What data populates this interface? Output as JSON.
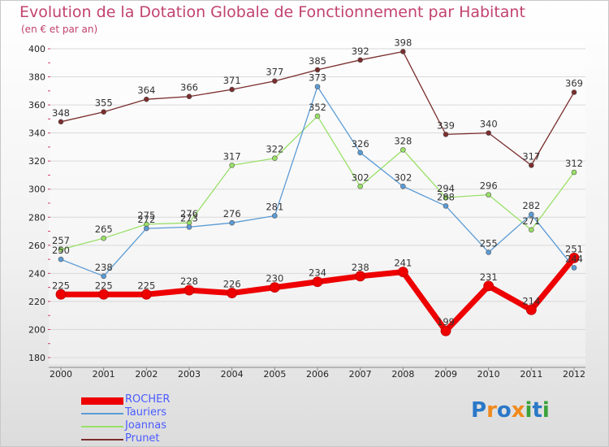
{
  "header": {
    "title": "Evolution de la Dotation Globale de Fonctionnement par Habitant",
    "subtitle": "(en € et par an)"
  },
  "chart_data": {
    "type": "line",
    "x": [
      "2000",
      "2001",
      "2002",
      "2003",
      "2004",
      "2005",
      "2006",
      "2007",
      "2008",
      "2009",
      "2010",
      "2011",
      "2012"
    ],
    "ylim": [
      180,
      400
    ],
    "yticks": [
      180,
      200,
      220,
      240,
      260,
      280,
      300,
      320,
      340,
      360,
      380,
      400
    ],
    "grid": "horizontal",
    "legend": "bottom-left",
    "series": [
      {
        "name": "ROCHER",
        "color": "#ee0000",
        "values": [
          225,
          225,
          225,
          228,
          226,
          230,
          234,
          238,
          241,
          199,
          231,
          214,
          251
        ]
      },
      {
        "name": "Tauriers",
        "color": "#5b9bd5",
        "values": [
          250,
          238,
          272,
          273,
          276,
          281,
          373,
          326,
          302,
          288,
          255,
          282,
          244
        ]
      },
      {
        "name": "Joannas",
        "color": "#99e067",
        "values": [
          257,
          265,
          275,
          276,
          317,
          322,
          352,
          302,
          328,
          294,
          296,
          271,
          312
        ]
      },
      {
        "name": "Prunet",
        "color": "#7b2d2d",
        "values": [
          348,
          355,
          364,
          366,
          371,
          377,
          385,
          392,
          398,
          339,
          340,
          317,
          369
        ]
      }
    ]
  },
  "logo": {
    "letters": [
      "P",
      "r",
      "o",
      "x",
      "i",
      "t",
      "i"
    ],
    "colors": [
      "#2a78c8",
      "#f08a1c",
      "#2a78c8",
      "#f08a1c",
      "#3aa13a",
      "#2a78c8",
      "#3aa13a"
    ]
  }
}
